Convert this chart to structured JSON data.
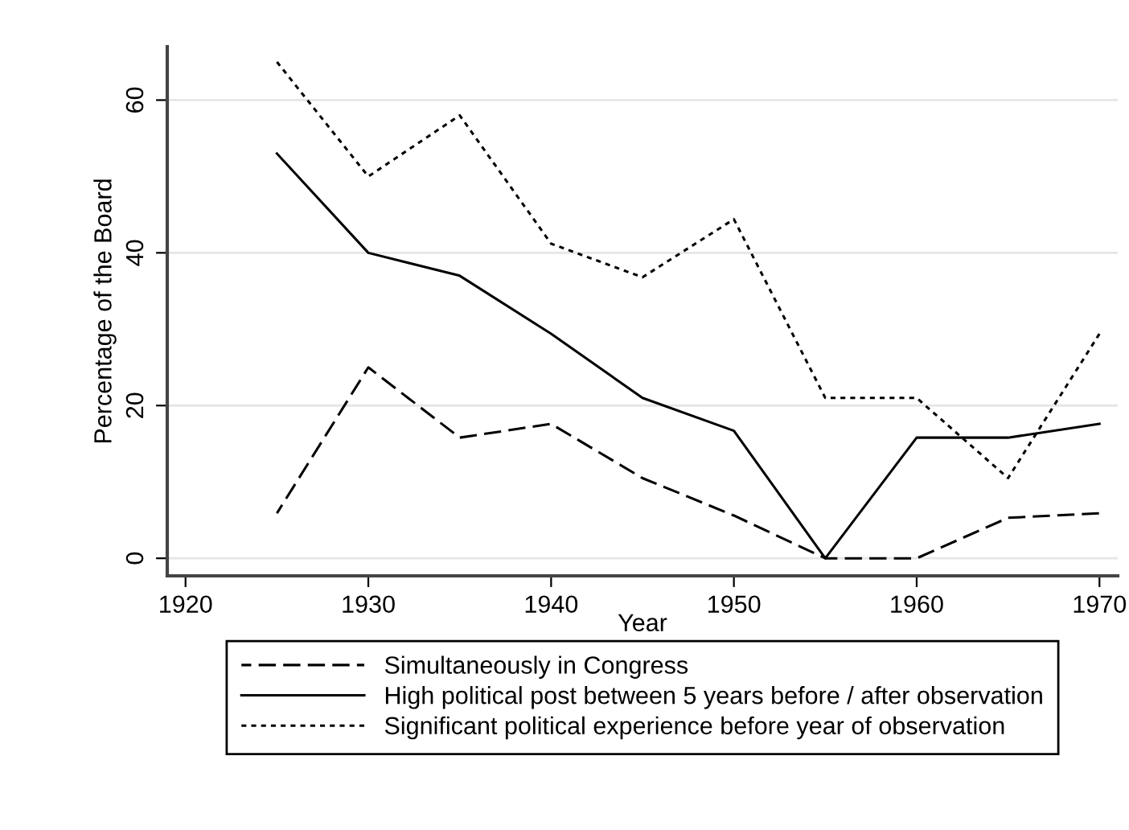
{
  "chart_data": {
    "type": "line",
    "xlabel": "Year",
    "ylabel": "Percentage of the Board",
    "x": [
      1925,
      1930,
      1935,
      1940,
      1945,
      1950,
      1955,
      1960,
      1965,
      1970
    ],
    "series": [
      {
        "name": "Simultaneously in Congress",
        "color": "#000000",
        "line_style": "dashed",
        "values": [
          5.9,
          25,
          15.8,
          17.6,
          10.5,
          5.6,
          0,
          0,
          5.3,
          5.9
        ]
      },
      {
        "name": "High political post between 5 years before / after observation",
        "color": "#000000",
        "line_style": "solid",
        "values": [
          53,
          40,
          37,
          29.4,
          21,
          16.7,
          0,
          15.8,
          15.8,
          17.6
        ]
      },
      {
        "name": "Significant political experience before year of observation",
        "color": "#000000",
        "line_style": "dotted",
        "values": [
          65,
          50,
          58,
          41.2,
          36.8,
          44.4,
          21,
          21,
          10.5,
          29.4
        ]
      }
    ],
    "xlim": [
      1919,
      1971
    ],
    "xticks": [
      1920,
      1930,
      1940,
      1950,
      1960,
      1970
    ],
    "ylim": [
      -2.3,
      67
    ],
    "yticks": [
      0,
      20,
      40,
      60
    ],
    "grid": "y",
    "legend": "bottom"
  }
}
